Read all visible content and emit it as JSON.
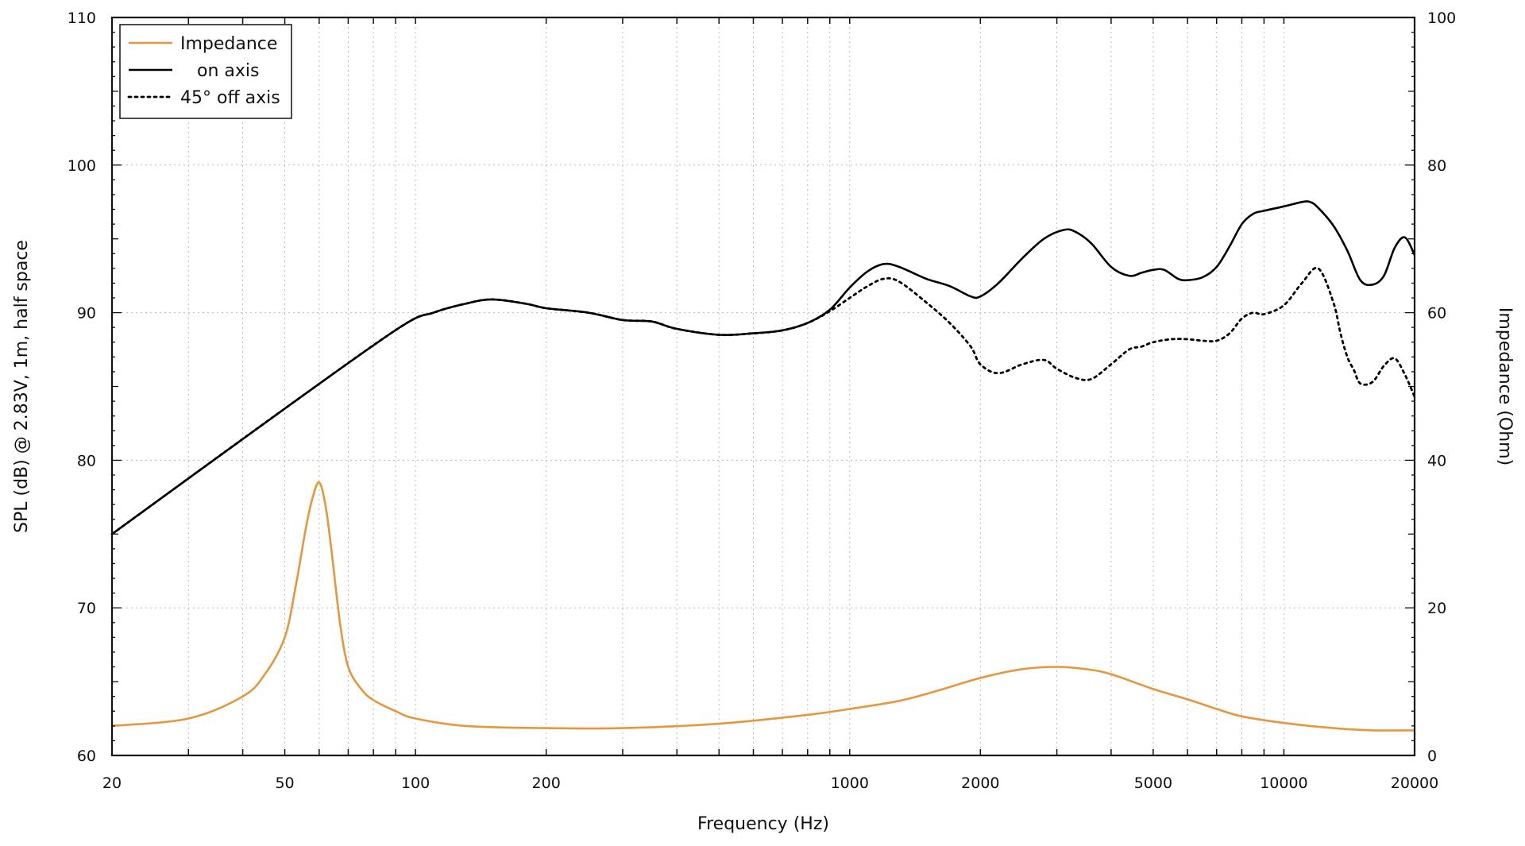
{
  "chart_data": {
    "type": "line",
    "title": "",
    "xlabel": "Frequency (Hz)",
    "ylabel_left": "SPL (dB) @ 2.83V, 1m, half space",
    "ylabel_right": "Impedance (Ohm)",
    "xscale": "log",
    "xlim": [
      20,
      20000
    ],
    "ylim_left": [
      60,
      110
    ],
    "ylim_right": [
      0,
      100
    ],
    "grid": true,
    "legend_position": "top-left",
    "x_ticks": [
      20,
      50,
      100,
      200,
      1000,
      2000,
      5000,
      10000,
      20000
    ],
    "x_tick_labels": [
      "20",
      "50",
      "100",
      "200",
      "1000",
      "2000",
      "5000",
      "10000",
      "20000"
    ],
    "y_left_ticks": [
      60,
      70,
      80,
      90,
      100,
      110
    ],
    "y_left_tick_labels": [
      "60",
      "70",
      "80",
      "90",
      "100",
      "110"
    ],
    "y_right_ticks": [
      0,
      20,
      40,
      60,
      80,
      100
    ],
    "y_right_tick_labels": [
      "0",
      "20",
      "40",
      "60",
      "80",
      "100"
    ],
    "series": [
      {
        "name": "Impedance",
        "axis": "right",
        "color": "#e8963c",
        "style": "solid",
        "x": [
          20,
          30,
          40,
          45,
          50,
          53,
          56,
          58,
          60,
          62,
          64,
          67,
          70,
          75,
          80,
          90,
          100,
          130,
          200,
          300,
          500,
          800,
          1000,
          1300,
          1600,
          2000,
          2500,
          3000,
          3500,
          4000,
          5000,
          6000,
          7000,
          8000,
          10000,
          13000,
          16000,
          20000
        ],
        "y": [
          4,
          5,
          8,
          11,
          16,
          23,
          31,
          35,
          37,
          34,
          28,
          18,
          12,
          9,
          7.5,
          6,
          5,
          4,
          3.7,
          3.7,
          4.3,
          5.5,
          6.3,
          7.4,
          8.8,
          10.5,
          11.7,
          12,
          11.7,
          11,
          9,
          7.6,
          6.3,
          5.3,
          4.4,
          3.7,
          3.4,
          3.4
        ]
      },
      {
        "name": "on axis",
        "axis": "left",
        "color": "#000000",
        "style": "solid",
        "x": [
          20,
          50,
          92,
          110,
          130,
          150,
          180,
          200,
          250,
          300,
          350,
          400,
          500,
          600,
          700,
          800,
          900,
          1000,
          1100,
          1200,
          1300,
          1500,
          1700,
          1900,
          2000,
          2200,
          2500,
          2800,
          3100,
          3300,
          3600,
          4000,
          4400,
          4700,
          5000,
          5300,
          5700,
          6000,
          6500,
          7000,
          7500,
          8000,
          8500,
          9000,
          10000,
          11000,
          11500,
          12000,
          13000,
          14000,
          15000,
          16000,
          17000,
          18000,
          19000,
          20000
        ],
        "y": [
          75,
          83.5,
          89,
          90,
          90.6,
          90.9,
          90.6,
          90.3,
          90,
          89.5,
          89.4,
          88.9,
          88.5,
          88.6,
          88.8,
          89.3,
          90.2,
          91.7,
          92.8,
          93.3,
          93.1,
          92.3,
          91.8,
          91.1,
          91.1,
          92.0,
          93.7,
          95,
          95.6,
          95.5,
          94.7,
          93.1,
          92.5,
          92.7,
          92.9,
          92.9,
          92.3,
          92.2,
          92.4,
          93.1,
          94.5,
          96,
          96.7,
          96.9,
          97.2,
          97.5,
          97.5,
          97.1,
          95.9,
          94.2,
          92.2,
          91.9,
          92.5,
          94.4,
          95.1,
          93.9
        ]
      },
      {
        "name": "45° off axis",
        "axis": "left",
        "color": "#000000",
        "style": "dotted",
        "x": [
          20,
          50,
          92,
          110,
          130,
          150,
          180,
          200,
          250,
          300,
          350,
          400,
          500,
          600,
          700,
          800,
          900,
          1000,
          1100,
          1200,
          1300,
          1500,
          1700,
          1900,
          2000,
          2200,
          2500,
          2800,
          3000,
          3300,
          3600,
          4000,
          4400,
          4700,
          5000,
          5500,
          6000,
          6500,
          7000,
          7500,
          8000,
          8500,
          9000,
          10000,
          11000,
          12000,
          13000,
          13500,
          14000,
          14500,
          15000,
          16000,
          17000,
          18000,
          19000,
          20000
        ],
        "y": [
          75,
          83.5,
          89,
          90,
          90.6,
          90.9,
          90.6,
          90.3,
          90,
          89.5,
          89.4,
          88.9,
          88.5,
          88.6,
          88.8,
          89.3,
          90.1,
          91.0,
          91.8,
          92.3,
          92.1,
          90.7,
          89.3,
          87.7,
          86.5,
          85.9,
          86.5,
          86.8,
          86.2,
          85.6,
          85.5,
          86.5,
          87.5,
          87.7,
          88.0,
          88.2,
          88.2,
          88.1,
          88.1,
          88.6,
          89.6,
          90.0,
          89.9,
          90.5,
          92.0,
          93.0,
          90.7,
          88.6,
          87.0,
          86.1,
          85.2,
          85.3,
          86.4,
          86.9,
          85.8,
          84.3
        ]
      }
    ]
  },
  "legend": [
    {
      "label": "Impedance",
      "color": "#e8963c",
      "style": "solid"
    },
    {
      "label": "   on axis",
      "color": "#000000",
      "style": "solid"
    },
    {
      "label": "45° off axis",
      "color": "#000000",
      "style": "dotted"
    }
  ]
}
